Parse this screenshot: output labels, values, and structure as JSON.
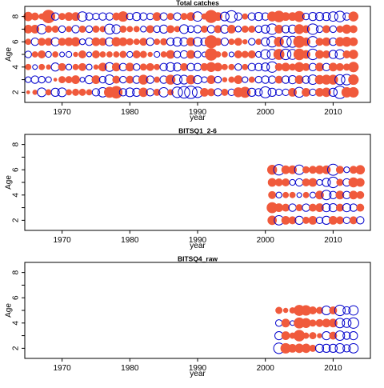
{
  "colors": {
    "positive": "#F05A3C",
    "negative": "#0000CC",
    "frame": "#000000"
  },
  "chart_data": [
    {
      "type": "scatter",
      "subtype": "bubble",
      "title": "Total catches",
      "xlabel": "year",
      "ylabel": "Age",
      "xlim": [
        1964.5,
        2015.5
      ],
      "ylim": [
        1.2,
        8.8
      ],
      "xticks": [
        "1970",
        "1980",
        "1990",
        "2000",
        "2010"
      ],
      "yticks": [
        "2",
        "4",
        "6",
        "8"
      ],
      "x_start": 1965,
      "x_end": 2013,
      "ages": [
        2,
        3,
        4,
        5,
        6,
        7,
        8
      ],
      "residuals": [
        [
          0.1,
          -0.3,
          0.3,
          -0.4,
          0.3,
          0.6,
          0.7
        ],
        [
          0.2,
          -0.5,
          -0.2,
          0.3,
          -0.5,
          0.6,
          0.5
        ],
        [
          -0.7,
          -0.4,
          0.3,
          0.5,
          0.5,
          -0.8,
          0.3
        ],
        [
          0.3,
          -0.3,
          0.2,
          -0.3,
          0.5,
          0.4,
          1.5
        ],
        [
          -0.6,
          0.1,
          -0.6,
          0.3,
          -0.6,
          0.4,
          -0.5
        ],
        [
          -0.7,
          0.4,
          0.5,
          -0.2,
          0.5,
          -0.4,
          0.4
        ],
        [
          0.3,
          0.4,
          -0.3,
          -0.3,
          0.6,
          0.3,
          0.6
        ],
        [
          0.4,
          0.6,
          0.3,
          0.2,
          0.7,
          -0.5,
          0.6
        ],
        [
          0.4,
          -0.2,
          0.5,
          0.5,
          -0.3,
          0.4,
          -0.8
        ],
        [
          0.3,
          -0.6,
          -0.3,
          -0.2,
          -0.5,
          -0.4,
          -0.5
        ],
        [
          -0.5,
          0.6,
          0.2,
          0.5,
          0.6,
          0.4,
          -0.4
        ],
        [
          -0.8,
          -0.4,
          0.6,
          0.3,
          0.5,
          0.3,
          -0.5
        ],
        [
          1.0,
          -0.8,
          -0.7,
          0.3,
          -0.6,
          -0.9,
          -0.5
        ],
        [
          1.3,
          0.5,
          0.6,
          0.3,
          0.7,
          -0.7,
          0.5
        ],
        [
          -0.5,
          -0.4,
          -0.5,
          0.4,
          0.6,
          0.4,
          0.9
        ],
        [
          -0.7,
          0.5,
          0.6,
          -0.3,
          0.4,
          0.3,
          -0.4
        ],
        [
          -0.6,
          -0.5,
          -0.4,
          0.5,
          0.3,
          0.3,
          -0.6
        ],
        [
          0.7,
          0.8,
          0.4,
          0.4,
          0.5,
          -0.3,
          -0.5
        ],
        [
          -0.5,
          -0.5,
          0.5,
          0.2,
          -0.5,
          0.5,
          -0.4
        ],
        [
          0.4,
          0.3,
          0.3,
          -0.3,
          0.3,
          -0.4,
          0.6
        ],
        [
          -0.8,
          -0.5,
          -0.5,
          0.3,
          0.4,
          -0.6,
          -0.5
        ],
        [
          0.3,
          0.8,
          -0.7,
          0.6,
          -0.5,
          0.5,
          0.4
        ],
        [
          -1.0,
          -0.8,
          -0.6,
          -0.4,
          -0.7,
          0.3,
          -0.5
        ],
        [
          -1.2,
          -0.7,
          0.5,
          -0.5,
          -0.6,
          -0.7,
          0.4
        ],
        [
          -1.4,
          0.7,
          -0.5,
          0.6,
          0.6,
          -0.4,
          0.6
        ],
        [
          -1.0,
          -0.6,
          -0.5,
          -0.4,
          -0.7,
          -0.5,
          -0.8
        ],
        [
          0.6,
          -0.3,
          0.5,
          -0.2,
          -0.5,
          0.4,
          0.3
        ],
        [
          0.5,
          0.6,
          0.8,
          1.3,
          1.4,
          -0.5,
          1.4
        ],
        [
          -0.5,
          -0.4,
          0.6,
          0.3,
          0.5,
          0.5,
          0.6
        ],
        [
          0.4,
          0.2,
          0.3,
          0.3,
          -0.5,
          -0.6,
          -0.7
        ],
        [
          -0.4,
          0.3,
          0.3,
          -0.2,
          0.3,
          0.6,
          -1.2
        ],
        [
          0.8,
          0.6,
          -0.4,
          0.5,
          0.5,
          -0.3,
          -0.5
        ],
        [
          1.0,
          -0.3,
          0.3,
          0.4,
          0.2,
          0.4,
          0.3
        ],
        [
          -0.6,
          0.3,
          -0.5,
          0.5,
          -0.4,
          0.4,
          -0.5
        ],
        [
          -0.5,
          -0.4,
          -0.5,
          -0.3,
          0.3,
          -0.4,
          -0.6
        ],
        [
          -1.1,
          -0.5,
          -0.6,
          -0.8,
          -0.6,
          -0.6,
          -0.5
        ],
        [
          -0.6,
          -0.5,
          -1.0,
          -0.9,
          -1.0,
          -1.0,
          0.8
        ],
        [
          -0.4,
          0.5,
          0.5,
          1.0,
          0.8,
          0.6,
          1.1
        ],
        [
          -0.4,
          -0.5,
          0.6,
          -1.0,
          -1.1,
          -0.5,
          0.6
        ],
        [
          0.6,
          -0.6,
          0.4,
          -0.9,
          -1.1,
          -0.6,
          0.6
        ],
        [
          -0.9,
          0.6,
          0.8,
          1.1,
          1.2,
          0.8,
          1.0
        ],
        [
          0.6,
          -0.5,
          0.5,
          0.6,
          0.6,
          0.5,
          -0.4
        ],
        [
          -0.4,
          -0.8,
          -0.5,
          -1.0,
          -1.0,
          -1.0,
          -0.6
        ],
        [
          0.6,
          0.7,
          0.6,
          0.6,
          0.5,
          -0.4,
          -0.6
        ],
        [
          0.7,
          0.8,
          -0.5,
          0.5,
          0.6,
          0.5,
          -0.6
        ],
        [
          -0.6,
          0.8,
          0.6,
          -0.6,
          -0.5,
          -0.4,
          -0.8
        ],
        [
          -1.4,
          -0.9,
          0.5,
          -0.8,
          0.7,
          0.4,
          -1.0
        ],
        [
          0.9,
          -1.0,
          0.4,
          0.5,
          0.8,
          0.7,
          -0.5
        ],
        [
          0.9,
          0.9,
          0.9,
          0.7,
          0.6,
          0.5,
          0.8
        ]
      ]
    },
    {
      "type": "scatter",
      "subtype": "bubble",
      "title": "BITSQ1_2-6",
      "xlabel": "year",
      "ylabel": "Age",
      "xlim": [
        1964.5,
        2015.5
      ],
      "ylim": [
        1.2,
        8.8
      ],
      "xticks": [
        "1970",
        "1980",
        "1990",
        "2000",
        "2010"
      ],
      "yticks": [
        "2",
        "4",
        "6",
        "8"
      ],
      "x_start": 2001,
      "x_end": 2014,
      "ages": [
        2,
        3,
        4,
        5,
        6
      ],
      "residuals": [
        [
          0.7,
          1.0,
          0.5,
          0.6,
          0.8
        ],
        [
          -0.8,
          0.6,
          -0.3,
          0.5,
          -1.0
        ],
        [
          0.6,
          0.5,
          0.3,
          0.5,
          0.6
        ],
        [
          0.5,
          -0.5,
          0.3,
          -0.3,
          0.6
        ],
        [
          -0.6,
          0.4,
          -0.2,
          -0.5,
          -0.8
        ],
        [
          0.4,
          -0.5,
          0.3,
          0.5,
          0.4
        ],
        [
          0.6,
          0.5,
          -0.3,
          0.6,
          0.5
        ],
        [
          -0.4,
          0.6,
          0.6,
          -0.3,
          0.6
        ],
        [
          -0.6,
          -0.6,
          -0.8,
          -0.6,
          0.6
        ],
        [
          0.6,
          -0.6,
          -0.5,
          -1.0,
          -1.1
        ],
        [
          0.5,
          0.5,
          0.6,
          0.4,
          0.5
        ],
        [
          -0.4,
          -0.6,
          -0.5,
          -0.5,
          -0.3
        ],
        [
          0.5,
          -0.5,
          0.6,
          0.8,
          0.5
        ],
        [
          -0.5,
          0.5,
          0.5,
          0.6,
          0.7
        ]
      ]
    },
    {
      "type": "scatter",
      "subtype": "bubble",
      "title": "BITSQ4_raw",
      "xlabel": "year",
      "ylabel": "Age",
      "xlim": [
        1964.5,
        2015.5
      ],
      "ylim": [
        1.2,
        8.8
      ],
      "xticks": [
        "1970",
        "1980",
        "1990",
        "2000",
        "2010"
      ],
      "yticks": [
        "2",
        "4",
        "6",
        "8"
      ],
      "x_start": 2002,
      "x_end": 2013,
      "ages": [
        2,
        3,
        4,
        5
      ],
      "residuals": [
        [
          -1.0,
          -0.6,
          -0.4,
          0.4
        ],
        [
          0.9,
          0.6,
          0.6,
          0.2
        ],
        [
          0.6,
          0.3,
          -0.2,
          0.3
        ],
        [
          0.7,
          1.1,
          1.0,
          1.0
        ],
        [
          0.7,
          0.3,
          0.8,
          0.9
        ],
        [
          0.4,
          0.4,
          0.4,
          0.5
        ],
        [
          -0.6,
          0.2,
          0.5,
          0.4
        ],
        [
          -0.6,
          -0.6,
          0.6,
          -0.7
        ],
        [
          -0.6,
          0.5,
          0.6,
          0.5
        ],
        [
          -0.8,
          -0.8,
          -0.8,
          -1.0
        ],
        [
          -0.5,
          -0.5,
          -0.7,
          -0.5
        ],
        [
          -0.8,
          -0.6,
          -1.0,
          -0.8
        ]
      ]
    }
  ]
}
